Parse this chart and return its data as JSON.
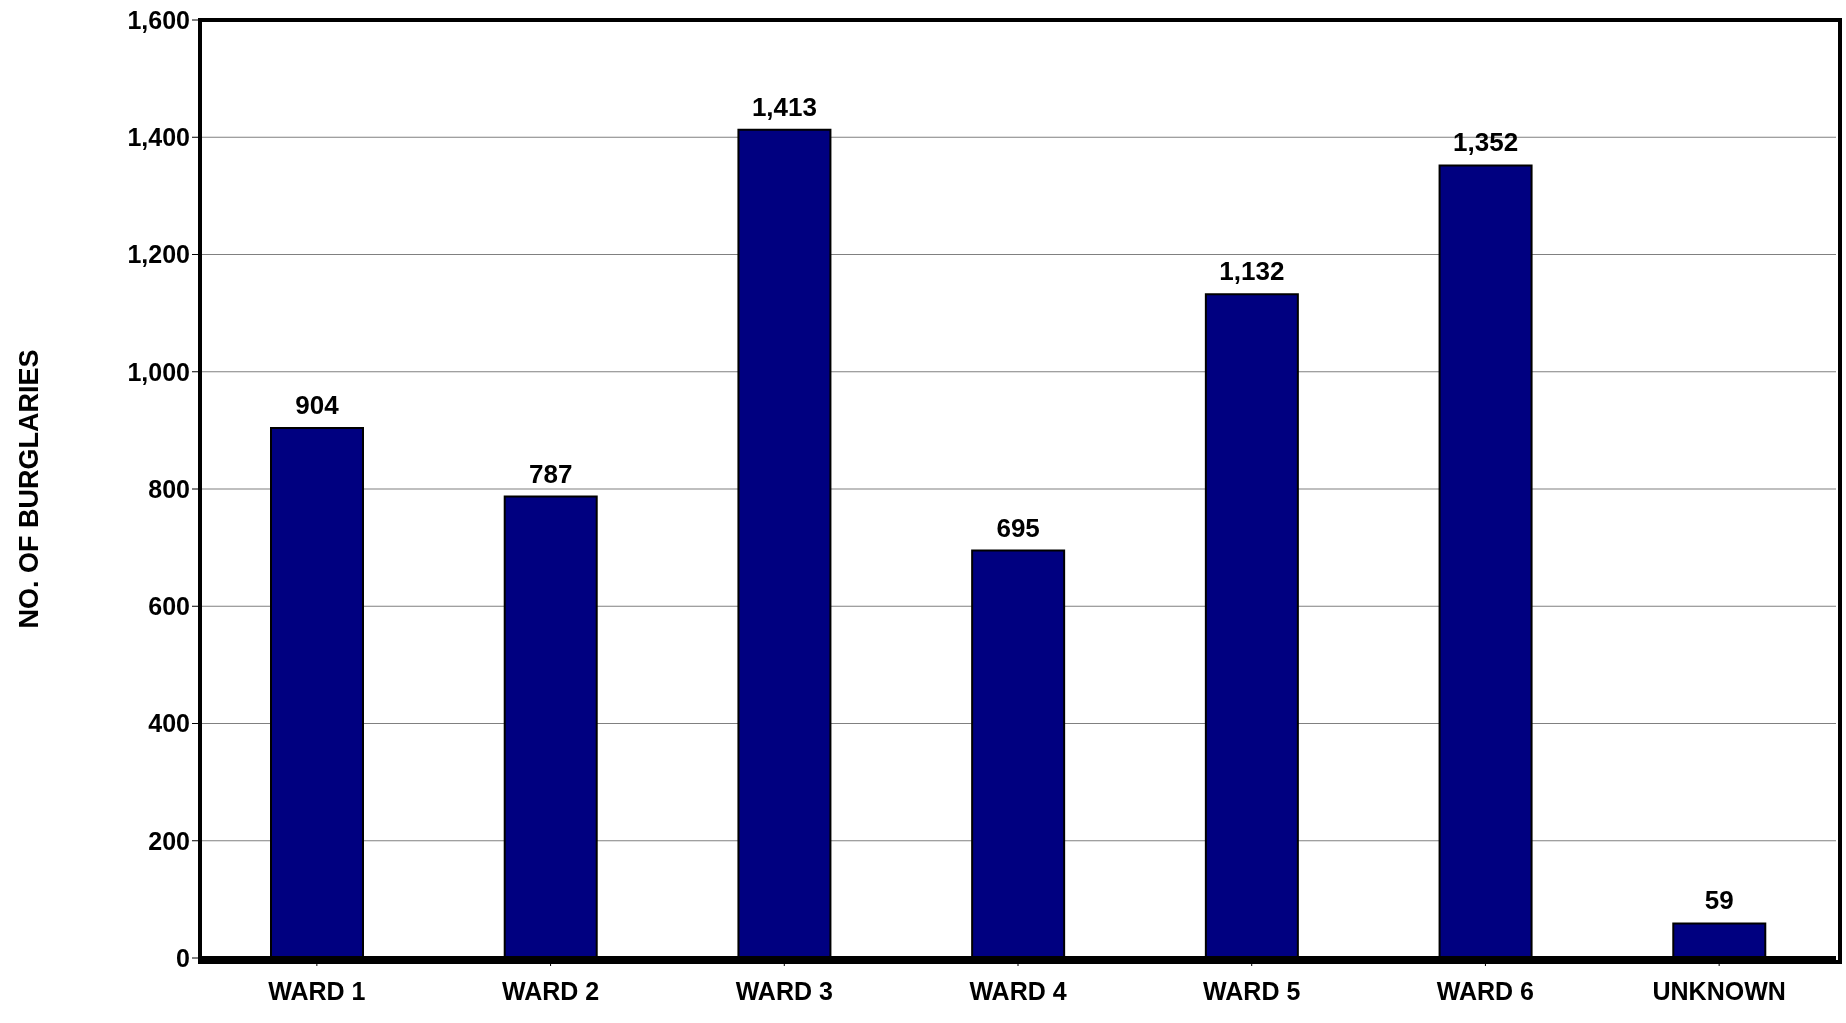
{
  "chart_data": {
    "type": "bar",
    "ylabel": "NO. OF BURGLARIES",
    "categories": [
      "WARD 1",
      "WARD 2",
      "WARD 3",
      "WARD 4",
      "WARD 5",
      "WARD 6",
      "UNKNOWN"
    ],
    "values": [
      904,
      787,
      1413,
      695,
      1132,
      1352,
      59
    ],
    "value_labels": [
      "904",
      "787",
      "1,413",
      "695",
      "1,132",
      "1,352",
      "59"
    ],
    "color": "#000080",
    "ylim": [
      0,
      1600
    ],
    "yticks": [
      0,
      200,
      400,
      600,
      800,
      {
        "value": 1000,
        "label": "1,000"
      },
      {
        "value": 1200,
        "label": "1,200"
      },
      {
        "value": 1400,
        "label": "1,400"
      },
      {
        "value": 1600,
        "label": "1,600"
      }
    ],
    "grid": "y"
  }
}
